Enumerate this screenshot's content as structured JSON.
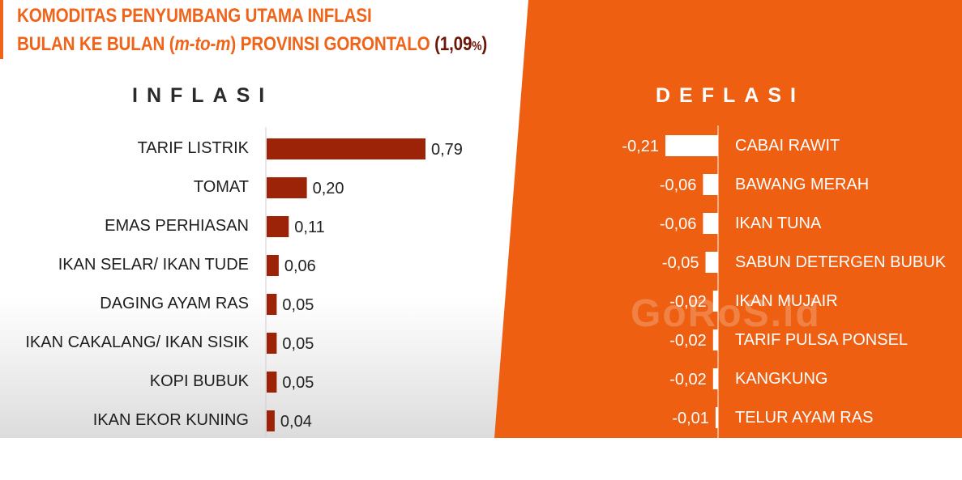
{
  "header": {
    "title_line1": "KOMODITAS PENYUMBANG UTAMA INFLASI",
    "title_line2_prefix": "BULAN KE BULAN (",
    "title_line2_italic": "m-to-m",
    "title_line2_mid": ") PROVINSI GORONTALO ",
    "title_line2_value": "(1,09",
    "title_line2_pct": "%",
    "title_line2_close": ")"
  },
  "watermark": "GoRoS.id",
  "colors": {
    "accent_orange": "#f0641a",
    "title_dark": "#6b1408",
    "bar_inflasi": "#9c2208",
    "bar_deflasi": "#ffffff",
    "panel_orange": "#ee5f12"
  },
  "chart_data": [
    {
      "type": "bar",
      "title": "INFLASI",
      "orientation": "horizontal",
      "categories": [
        "TARIF LISTRIK",
        "TOMAT",
        "EMAS PERHIASAN",
        "IKAN SELAR/ IKAN TUDE",
        "DAGING AYAM RAS",
        "IKAN CAKALANG/ IKAN SISIK",
        "KOPI BUBUK",
        "IKAN EKOR KUNING"
      ],
      "values": [
        0.79,
        0.2,
        0.11,
        0.06,
        0.05,
        0.05,
        0.05,
        0.04
      ],
      "value_labels": [
        "0,79",
        "0,20",
        "0,11",
        "0,06",
        "0,05",
        "0,05",
        "0,05",
        "0,04"
      ]
    },
    {
      "type": "bar",
      "title": "DEFLASI",
      "orientation": "horizontal",
      "categories": [
        "CABAI RAWIT",
        "BAWANG MERAH",
        "IKAN TUNA",
        "SABUN DETERGEN BUBUK",
        "IKAN MUJAIR",
        "TARIF PULSA PONSEL",
        "KANGKUNG",
        "TELUR AYAM RAS"
      ],
      "values": [
        -0.21,
        -0.06,
        -0.06,
        -0.05,
        -0.02,
        -0.02,
        -0.02,
        -0.01
      ],
      "value_labels": [
        "-0,21",
        "-0,06",
        "-0,06",
        "-0,05",
        "-0,02",
        "-0,02",
        "-0,02",
        "-0,01"
      ]
    }
  ]
}
